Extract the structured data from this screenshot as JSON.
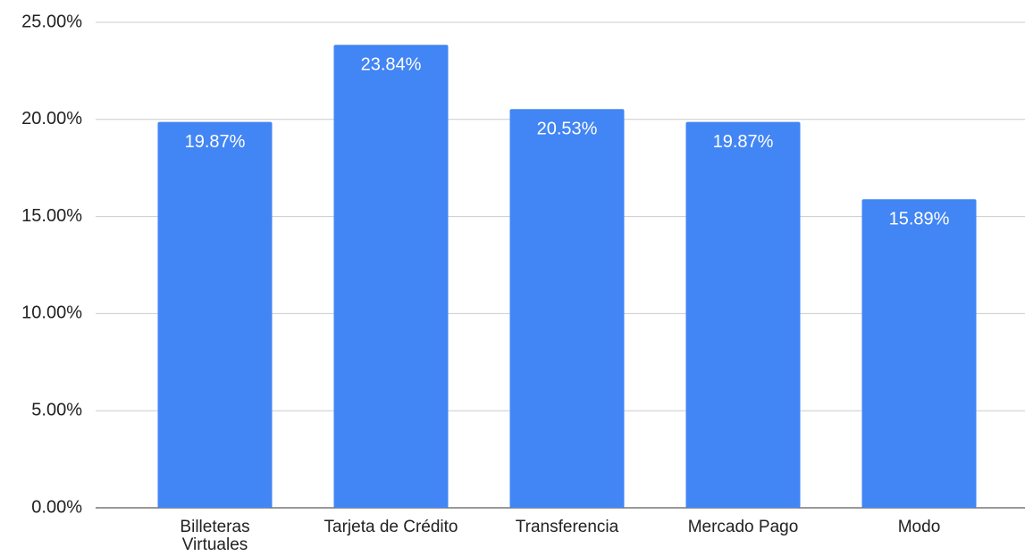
{
  "chart_data": {
    "type": "bar",
    "categories": [
      "Billeteras Virtuales",
      "Tarjeta de Crédito",
      "Transferencia",
      "Mercado Pago",
      "Modo"
    ],
    "values": [
      19.87,
      23.84,
      20.53,
      19.87,
      15.89
    ],
    "value_labels": [
      "19.87%",
      "23.84%",
      "20.53%",
      "19.87%",
      "15.89%"
    ],
    "color": "#4285f4",
    "ylim": [
      0,
      25
    ],
    "yticks": [
      {
        "value": 0,
        "label": "0.00%"
      },
      {
        "value": 5,
        "label": "5.00%"
      },
      {
        "value": 10,
        "label": "10.00%"
      },
      {
        "value": 15,
        "label": "15.00%"
      },
      {
        "value": 20,
        "label": "20.00%"
      },
      {
        "value": 25,
        "label": "25.00%"
      }
    ],
    "grid": true
  }
}
